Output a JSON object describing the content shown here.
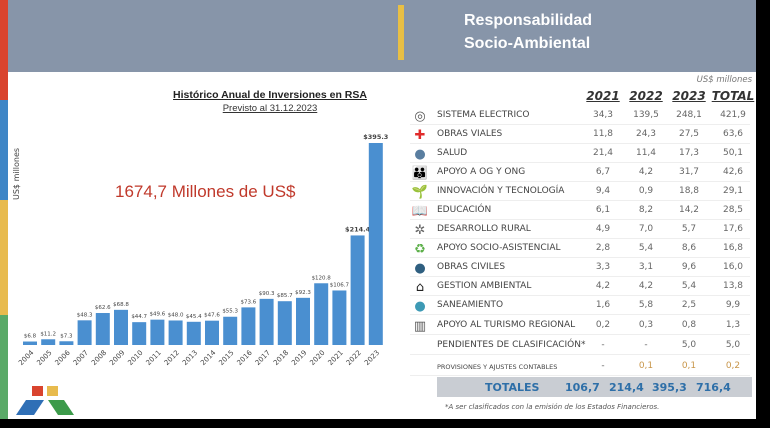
{
  "header": {
    "title_line1": "Responsabilidad",
    "title_line2": "Socio-Ambiental"
  },
  "chart_data": {
    "type": "bar",
    "title": "Histórico Anual de Inversiones en RSA",
    "subtitle": "Previsto al 31.12.2023",
    "ylabel": "US$ millones",
    "categories": [
      "2004",
      "2005",
      "2006",
      "2007",
      "2008",
      "2009",
      "2010",
      "2011",
      "2012",
      "2013",
      "2014",
      "2015",
      "2016",
      "2017",
      "2018",
      "2019",
      "2020",
      "2021",
      "2022",
      "2023"
    ],
    "values": [
      6.8,
      11.2,
      7.3,
      48.3,
      62.6,
      68.8,
      44.7,
      49.6,
      48.0,
      45.4,
      47.6,
      55.3,
      73.6,
      90.3,
      85.7,
      92.3,
      120.8,
      106.7,
      214.4,
      395.3
    ],
    "labels": [
      "$6.8",
      "$11.2",
      "$7.3",
      "$48.3",
      "$62.6",
      "$68.8",
      "$44.7",
      "$49.6",
      "$48.0",
      "$45.4",
      "$47.6",
      "$55.3",
      "$73.6",
      "$90.3",
      "$85.7",
      "$92.3",
      "$120.8",
      "$106.7",
      "$214.4",
      "$395.3"
    ],
    "ylim": [
      0,
      400
    ],
    "color": "#4a8fd0",
    "annotation": "1674,7 Millones de US$"
  },
  "table": {
    "units": "US$ millones",
    "columns": [
      "2021",
      "2022",
      "2023",
      "TOTAL"
    ],
    "rows": [
      {
        "icon": "lightbulb-icon",
        "label": "SISTEMA ELECTRICO",
        "v": [
          "34,3",
          "139,5",
          "248,1",
          "421,9"
        ]
      },
      {
        "icon": "red-cross-icon",
        "label": "OBRAS VIALES",
        "v": [
          "11,8",
          "24,3",
          "27,5",
          "63,6"
        ]
      },
      {
        "icon": "landscape-icon",
        "label": "SALUD",
        "v": [
          "21,4",
          "11,4",
          "17,3",
          "50,1"
        ]
      },
      {
        "icon": "family-icon",
        "label": "APOYO A OG Y ONG",
        "v": [
          "6,7",
          "4,2",
          "31,7",
          "42,6"
        ]
      },
      {
        "icon": "plant-icon",
        "label": "INNOVACIÓN Y TECNOLOGÍA",
        "v": [
          "9,4",
          "0,9",
          "18,8",
          "29,1"
        ]
      },
      {
        "icon": "book-icon",
        "label": "EDUCACIÓN",
        "v": [
          "6,1",
          "8,2",
          "14,2",
          "28,5"
        ]
      },
      {
        "icon": "rural-icon",
        "label": "DESARROLLO RURAL",
        "v": [
          "4,9",
          "7,0",
          "5,7",
          "17,6"
        ]
      },
      {
        "icon": "recycle-icon",
        "label": "APOYO SOCIO-ASISTENCIAL",
        "v": [
          "2,8",
          "5,4",
          "8,6",
          "16,8"
        ]
      },
      {
        "icon": "circle-icon",
        "label": "OBRAS CIVILES",
        "v": [
          "3,3",
          "3,1",
          "9,6",
          "16,0"
        ]
      },
      {
        "icon": "house-icon",
        "label": "GESTION AMBIENTAL",
        "v": [
          "4,2",
          "4,2",
          "5,4",
          "13,8"
        ]
      },
      {
        "icon": "water-icon",
        "label": "SANEAMIENTO",
        "v": [
          "1,6",
          "5,8",
          "2,5",
          "9,9"
        ]
      },
      {
        "icon": "map-icon",
        "label": "APOYO AL TURISMO REGIONAL",
        "v": [
          "0,2",
          "0,3",
          "0,8",
          "1,3"
        ]
      },
      {
        "icon": "",
        "label": "PENDIENTES DE CLASIFICACIÓN*",
        "v": [
          "-",
          "-",
          "5,0",
          "5,0"
        ]
      },
      {
        "icon": "",
        "label": "PROVISIONES Y AJUSTES CONTABLES",
        "v": [
          "-",
          "0,1",
          "0,1",
          "0,2"
        ]
      }
    ],
    "totals": {
      "label": "TOTALES",
      "v": [
        "106,7",
        "214,4",
        "395,3",
        "716,4"
      ]
    },
    "footnote": "*A ser clasificados con la emisión de los Estados Financieros."
  }
}
